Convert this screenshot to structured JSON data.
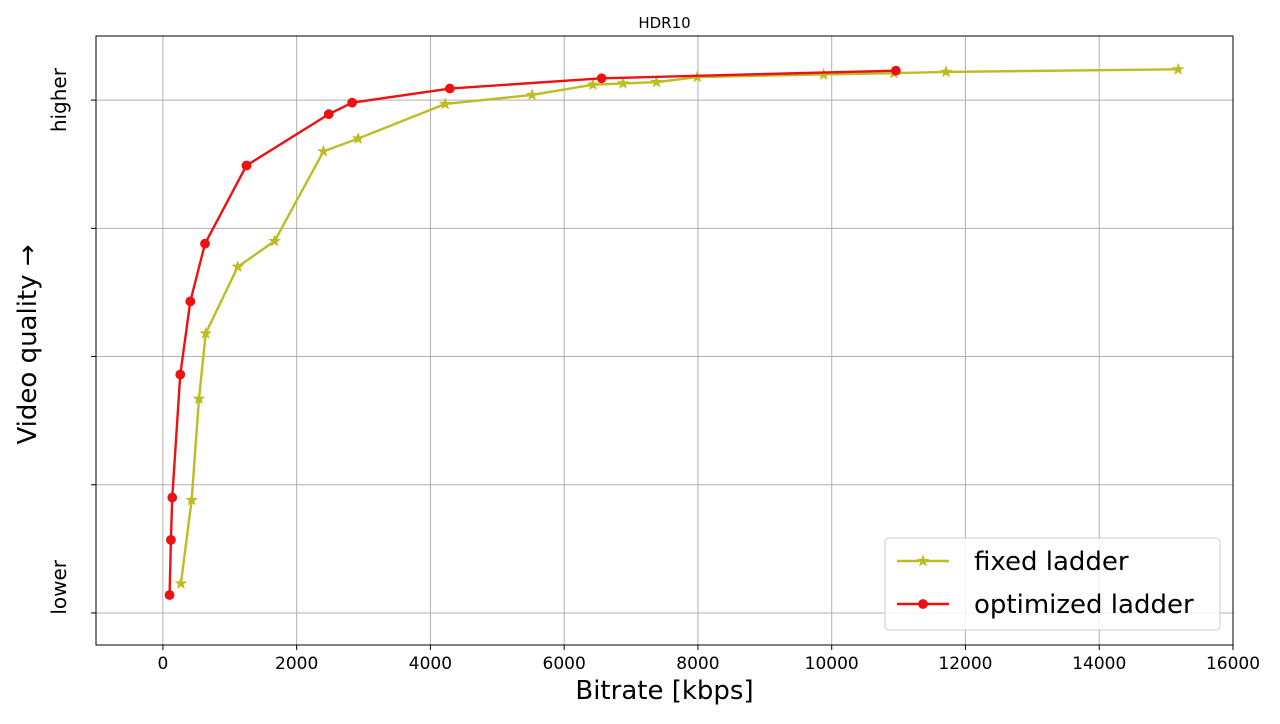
{
  "chart_data": {
    "type": "line",
    "title": "HDR10",
    "xlabel": "Bitrate [kbps]",
    "ylabel": "Video quality →",
    "xlim": [
      -1000,
      16000
    ],
    "ylim": [
      -0.25,
      4.5
    ],
    "x_ticks": [
      0,
      2000,
      4000,
      6000,
      8000,
      10000,
      12000,
      14000,
      16000
    ],
    "x_tick_labels": [
      "0",
      "2000",
      "4000",
      "6000",
      "8000",
      "10000",
      "12000",
      "14000",
      "16000"
    ],
    "y_ticks": [
      0,
      1,
      2,
      3,
      4
    ],
    "y_tick_labels": [
      "",
      "",
      "",
      "",
      ""
    ],
    "y_annotations": {
      "lower": "lower",
      "higher": "higher"
    },
    "grid": true,
    "legend_position": "lower-right",
    "series": [
      {
        "name": "fixed ladder",
        "color": "#bcbd22",
        "marker": "star",
        "x": [
          270,
          430,
          540,
          640,
          1120,
          1670,
          2400,
          2920,
          4220,
          5520,
          6430,
          6880,
          7380,
          7990,
          9880,
          10930,
          11710,
          15180
        ],
        "y": [
          0.23,
          0.88,
          1.67,
          2.18,
          2.7,
          2.9,
          3.6,
          3.7,
          3.97,
          4.04,
          4.12,
          4.13,
          4.14,
          4.18,
          4.2,
          4.21,
          4.22,
          4.24
        ]
      },
      {
        "name": "optimized ladder",
        "color": "#ee1111",
        "marker": "circle",
        "x": [
          100,
          120,
          140,
          260,
          410,
          630,
          1250,
          2480,
          2830,
          4290,
          6560,
          10960
        ],
        "y": [
          0.14,
          0.57,
          0.9,
          1.86,
          2.43,
          2.88,
          3.49,
          3.89,
          3.98,
          4.09,
          4.17,
          4.23
        ]
      }
    ]
  }
}
